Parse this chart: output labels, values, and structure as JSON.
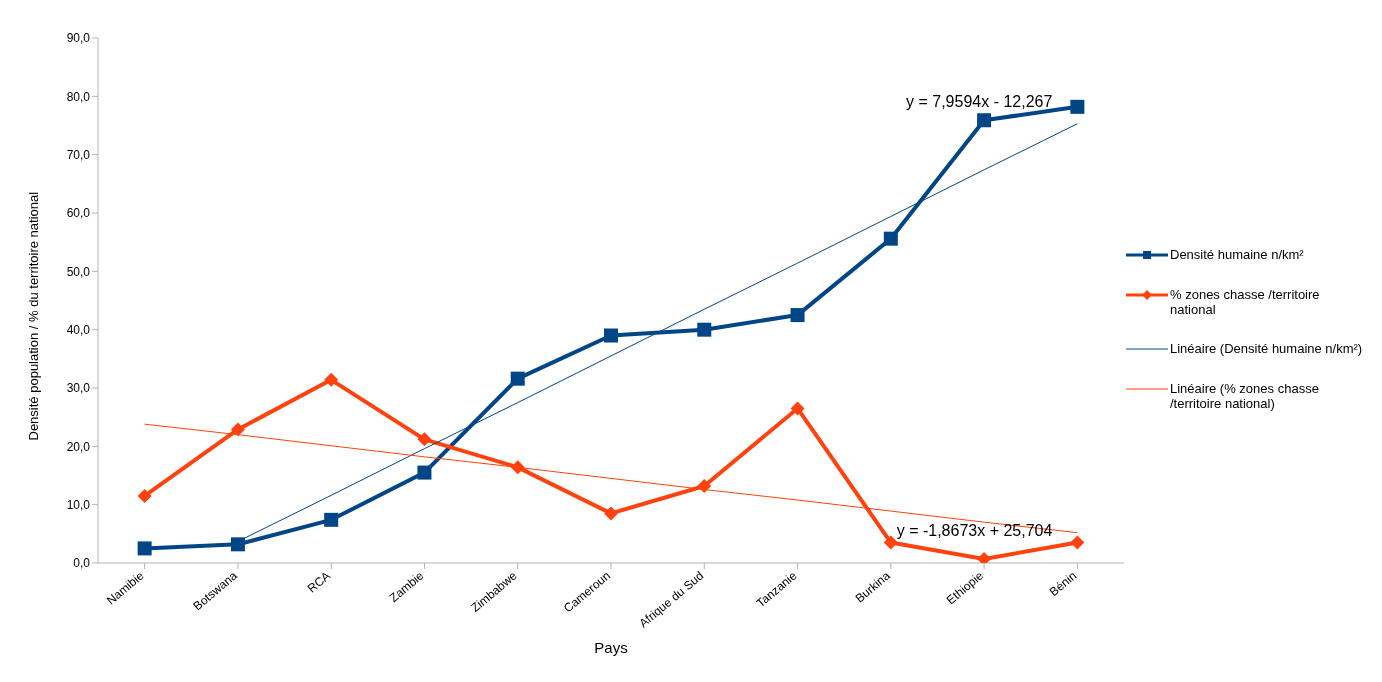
{
  "chart_data": {
    "type": "line",
    "xlabel": "Pays",
    "ylabel": "Densité population / % du territoire national",
    "categories": [
      "Namibie",
      "Botswana",
      "RCA",
      "Zambie",
      "Zimbabwe",
      "Cameroun",
      "Afrique du Sud",
      "Tanzanie",
      "Burkina",
      "Ethiopie",
      "Bénin"
    ],
    "series": [
      {
        "name": "Densité humaine n/km²",
        "color": "#004586",
        "marker": "square",
        "values": [
          2.5,
          3.2,
          7.4,
          15.5,
          31.6,
          39.0,
          40.0,
          42.5,
          55.6,
          75.9,
          78.2
        ]
      },
      {
        "name": "% zones chasse /territoire national",
        "color": "#ff420e",
        "marker": "diamond",
        "values": [
          11.5,
          22.9,
          31.4,
          21.2,
          16.4,
          8.5,
          13.2,
          26.5,
          3.5,
          0.7,
          3.5
        ]
      },
      {
        "name": "Linéaire (Densité humaine n/km²)",
        "color": "#004586",
        "marker": "none",
        "values": [
          null,
          3.7,
          11.6,
          19.6,
          27.5,
          35.5,
          43.5,
          51.4,
          59.4,
          67.4,
          75.3
        ]
      },
      {
        "name": "Linéaire (% zones chasse /territoire national)",
        "color": "#ff420e",
        "marker": "none",
        "values": [
          23.8,
          22.0,
          20.1,
          18.2,
          16.4,
          14.5,
          12.6,
          10.8,
          8.9,
          7.0,
          5.2
        ]
      }
    ],
    "annotations": [
      "y = 7,9594x - 12,267",
      "y = -1,8673x + 25,704"
    ],
    "ylim": [
      0,
      90
    ],
    "yticks": [
      {
        "value": 0,
        "label": "0,0"
      },
      {
        "value": 10,
        "label": "10,0"
      },
      {
        "value": 20,
        "label": "20,0"
      },
      {
        "value": 30,
        "label": "30,0"
      },
      {
        "value": 40,
        "label": "40,0"
      },
      {
        "value": 50,
        "label": "50,0"
      },
      {
        "value": 60,
        "label": "60,0"
      },
      {
        "value": 70,
        "label": "70,0"
      },
      {
        "value": 80,
        "label": "80,0"
      },
      {
        "value": 90,
        "label": "90,0"
      }
    ],
    "grid": false,
    "legend": "right"
  }
}
